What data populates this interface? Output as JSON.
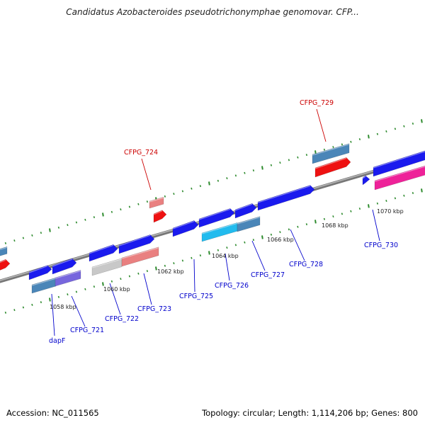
{
  "title": "Candidatus Azobacteroides pseudotrichonymphae genomovar. CFP...",
  "accession": "Accession: NC_011565",
  "summary": "Topology: circular; Length: 1,114,206 bp; Genes: 800",
  "colors": {
    "backbone": "#8a8a8a",
    "tick": "#2e8b2e",
    "label_blue": "#0000cc",
    "label_red": "#cc0000",
    "gene_blue": "#1a1aee",
    "gene_steel": "#4a86b8",
    "gene_red": "#ee1111",
    "gene_pink": "#e98080",
    "gene_cyan": "#22bbee",
    "gene_gray": "#c8c8c8",
    "gene_purple": "#7766dd",
    "gene_magenta": "#ee2299"
  },
  "scale_labels": [
    "1058 kbp",
    "1060 kbp",
    "1062 kbp",
    "1064 kbp",
    "1066 kbp",
    "1068 kbp",
    "1070 kbp"
  ],
  "gene_labels": [
    {
      "text": "dapF",
      "color": "blue"
    },
    {
      "text": "CFPG_721",
      "color": "blue"
    },
    {
      "text": "CFPG_722",
      "color": "blue"
    },
    {
      "text": "CFPG_723",
      "color": "blue"
    },
    {
      "text": "CFPG_724",
      "color": "red"
    },
    {
      "text": "CFPG_725",
      "color": "blue"
    },
    {
      "text": "CFPG_726",
      "color": "blue"
    },
    {
      "text": "CFPG_727",
      "color": "blue"
    },
    {
      "text": "CFPG_728",
      "color": "blue"
    },
    {
      "text": "CFPG_729",
      "color": "red"
    },
    {
      "text": "CFPG_730",
      "color": "blue"
    }
  ]
}
